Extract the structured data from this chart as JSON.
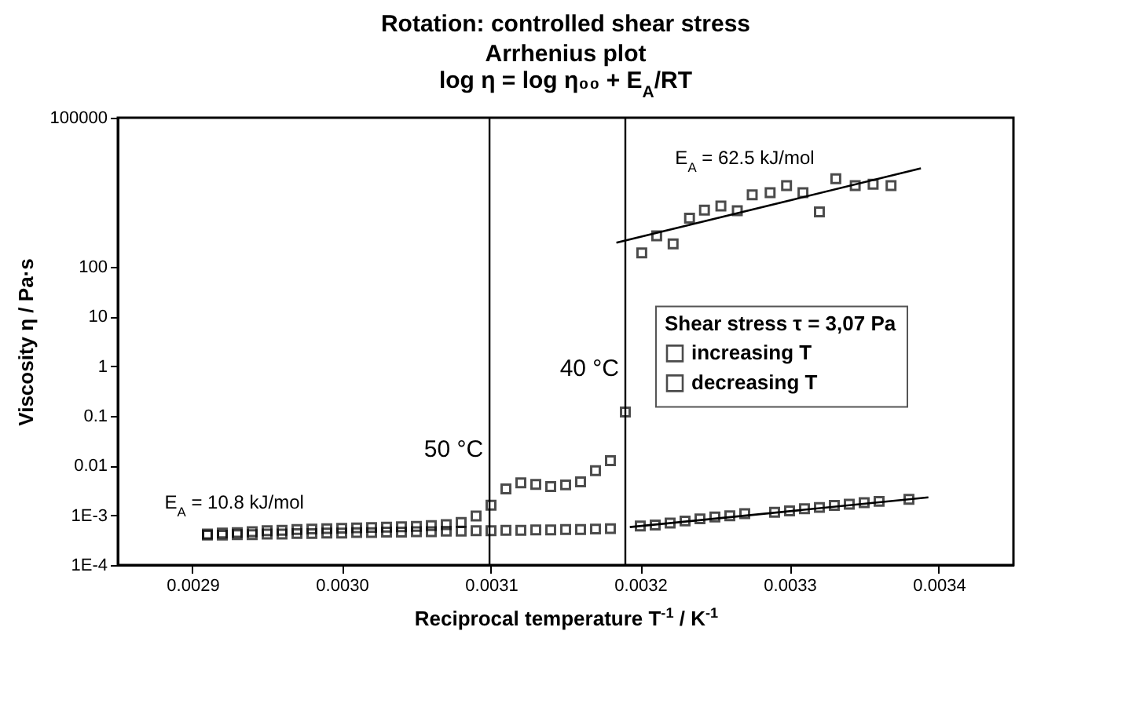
{
  "chart_data": {
    "type": "scatter",
    "title": "Rotation: controlled shear stress",
    "subtitle": [
      "Arrhenius plot",
      "log η = log η₀₀ + E$_{A}$/RT"
    ],
    "xlabel": "Reciprocal temperature T$^{-1}$  /  K$^{-1}$",
    "ylabel": "Viscosity η  /  Pa·s",
    "legend_title": "Shear stress τ = 3,07 Pa",
    "series": [
      {
        "name": "increasing T",
        "color": "#000000",
        "marker": "square",
        "x": [
          0.00291,
          0.00292,
          0.00293,
          0.00294,
          0.00295,
          0.00296,
          0.00297,
          0.00298,
          0.00299,
          0.003,
          0.00301,
          0.00302,
          0.00303,
          0.00304,
          0.00305,
          0.00306,
          0.00307,
          0.00308,
          0.00309,
          0.0031,
          0.00311,
          0.00312,
          0.00313,
          0.00314,
          0.00315,
          0.00316,
          0.00317,
          0.00318,
          0.00319,
          0.003201,
          0.003211,
          0.003222,
          0.003233,
          0.003243,
          0.003254,
          0.003265,
          0.003275,
          0.003287,
          0.003298,
          0.003309,
          0.00332,
          0.003331,
          0.003344,
          0.003356,
          0.003368
        ],
        "values": [
          0.00042,
          0.00044,
          0.00045,
          0.00047,
          0.00049,
          0.0005,
          0.00052,
          0.00053,
          0.00054,
          0.00055,
          0.00056,
          0.00057,
          0.00058,
          0.00059,
          0.0006,
          0.00062,
          0.00065,
          0.00072,
          0.00097,
          0.0016,
          0.0034,
          0.0045,
          0.0042,
          0.0038,
          0.0041,
          0.0047,
          0.0079,
          0.0126,
          0.12,
          190,
          420,
          290,
          950,
          1380,
          1670,
          1350,
          2800,
          3100,
          4300,
          3100,
          1270,
          5900,
          4300,
          4600,
          4300
        ]
      },
      {
        "name": "decreasing T",
        "color": "#000000",
        "marker": "square",
        "x": [
          0.00291,
          0.00292,
          0.00293,
          0.00294,
          0.00295,
          0.00296,
          0.00297,
          0.00298,
          0.00299,
          0.003,
          0.00301,
          0.00302,
          0.00303,
          0.00304,
          0.00305,
          0.00306,
          0.00307,
          0.00308,
          0.00309,
          0.0031,
          0.00311,
          0.00312,
          0.00313,
          0.00314,
          0.00315,
          0.00316,
          0.00317,
          0.00318,
          0.0032,
          0.00321,
          0.00322,
          0.00323,
          0.00324,
          0.00325,
          0.00326,
          0.00327,
          0.00329,
          0.0033,
          0.00331,
          0.00332,
          0.00333,
          0.00334,
          0.00335,
          0.00336,
          0.00338
        ],
        "values": [
          0.0004,
          0.0004,
          0.00041,
          0.00041,
          0.00042,
          0.00042,
          0.00043,
          0.00043,
          0.00044,
          0.00044,
          0.00045,
          0.00045,
          0.00046,
          0.00046,
          0.00047,
          0.00047,
          0.00048,
          0.00048,
          0.00049,
          0.00049,
          0.0005,
          0.0005,
          0.00051,
          0.00051,
          0.00052,
          0.00052,
          0.00053,
          0.00054,
          0.00061,
          0.00064,
          0.0007,
          0.00077,
          0.00085,
          0.00093,
          0.00098,
          0.00108,
          0.00115,
          0.00123,
          0.00136,
          0.00144,
          0.00158,
          0.00167,
          0.0018,
          0.00191,
          0.0021
        ]
      },
      {
        "type": "line",
        "color": "#000000",
        "x": [
          0.003184,
          0.003388
        ],
        "values": [
          305,
          9550
        ]
      },
      {
        "type": "line",
        "color": "#000000",
        "x": [
          0.003193,
          0.003393
        ],
        "values": [
          0.00058,
          0.0023
        ]
      }
    ],
    "ref_lines": [
      {
        "axis": "x",
        "value": 0.003099,
        "label": "50 °C"
      },
      {
        "axis": "x",
        "value": 0.00319,
        "label": "40 °C"
      }
    ],
    "annotations": [
      "E$_{A}$ = 62.5 kJ/mol",
      "E$_{A}$ = 10.8 kJ/mol"
    ],
    "xlim": [
      0.00285,
      0.00345
    ],
    "xticks": [
      0.0029,
      {
        "value": 0.003,
        "label": "0.0030"
      },
      0.0031,
      0.0032,
      0.0033,
      0.0034
    ],
    "ylim": [
      0.0001,
      100000
    ],
    "yticks": [
      {
        "value": 0.0001,
        "label": "1E-4"
      },
      {
        "value": 0.001,
        "label": "1E-3"
      },
      0.01,
      0.1,
      1,
      10,
      100,
      100000
    ],
    "log": "y",
    "grid": false,
    "legend": "right"
  }
}
